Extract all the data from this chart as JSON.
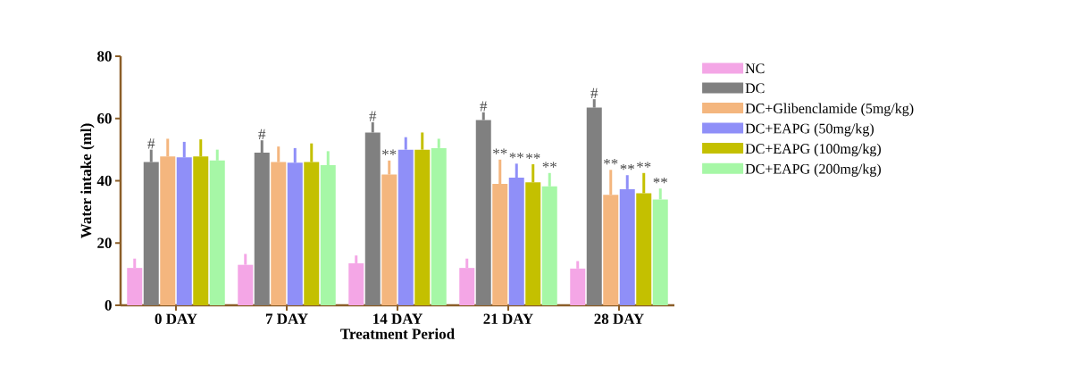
{
  "chart_data": {
    "type": "bar",
    "xlabel": "Treatment Period",
    "ylabel": "Water intake (ml)",
    "categories": [
      "0 DAY",
      "7 DAY",
      "14 DAY",
      "21 DAY",
      "28 DAY"
    ],
    "ylim": [
      0,
      80
    ],
    "yticks": [
      0,
      20,
      40,
      60,
      80
    ],
    "grid": false,
    "legend": "right",
    "series": [
      {
        "name": "NC",
        "color": "#f4a6e6",
        "values": [
          12,
          13,
          13.5,
          12,
          11.8
        ],
        "errors": [
          [
            12,
            15
          ],
          [
            13,
            16.5
          ],
          [
            13.5,
            16
          ],
          [
            12,
            15
          ],
          [
            11.8,
            14.2
          ]
        ]
      },
      {
        "name": "DC",
        "color": "#808080",
        "values": [
          46,
          49,
          55.5,
          59.5,
          63.5
        ],
        "errors": [
          [
            46,
            50
          ],
          [
            49,
            53
          ],
          [
            55.5,
            58.8
          ],
          [
            59.5,
            62
          ],
          [
            63.5,
            66.2
          ]
        ],
        "value_labels": [
          "#",
          "#",
          "#",
          "#",
          "#"
        ]
      },
      {
        "name": "DC+Glibenclamide (5mg/kg)",
        "color": "#f4b67e",
        "values": [
          47.8,
          46,
          42,
          39,
          35.5
        ],
        "errors": [
          [
            47.8,
            53.5
          ],
          [
            46,
            51
          ],
          [
            42,
            46.5
          ],
          [
            39,
            46.8
          ],
          [
            35.5,
            43.5
          ]
        ],
        "value_labels": [
          null,
          null,
          "**",
          "**",
          "**"
        ]
      },
      {
        "name": "DC+EAPG (50mg/kg)",
        "color": "#8f8ff8",
        "values": [
          47.5,
          45.8,
          50,
          41,
          37.3
        ],
        "errors": [
          [
            47.5,
            52.5
          ],
          [
            45.8,
            50.5
          ],
          [
            50,
            54
          ],
          [
            41,
            45.5
          ],
          [
            37.3,
            41.8
          ]
        ],
        "value_labels": [
          null,
          null,
          null,
          "**",
          "**"
        ]
      },
      {
        "name": "DC+EAPG (100mg/kg)",
        "color": "#c4c000",
        "values": [
          47.8,
          46,
          50,
          39.5,
          36
        ],
        "errors": [
          [
            47.8,
            53.3
          ],
          [
            46,
            52
          ],
          [
            50,
            55.5
          ],
          [
            39.5,
            45.3
          ],
          [
            36,
            42.5
          ]
        ],
        "value_labels": [
          null,
          null,
          null,
          "**",
          "**"
        ]
      },
      {
        "name": "DC+EAPG (200mg/kg)",
        "color": "#a6f7a6",
        "values": [
          46.5,
          45,
          50.5,
          38.2,
          34
        ],
        "errors": [
          [
            46.5,
            50
          ],
          [
            45,
            49.5
          ],
          [
            50.5,
            53.5
          ],
          [
            38.2,
            42.5
          ],
          [
            34,
            37.5
          ]
        ],
        "value_labels": [
          null,
          null,
          null,
          "**",
          "**"
        ]
      }
    ]
  }
}
